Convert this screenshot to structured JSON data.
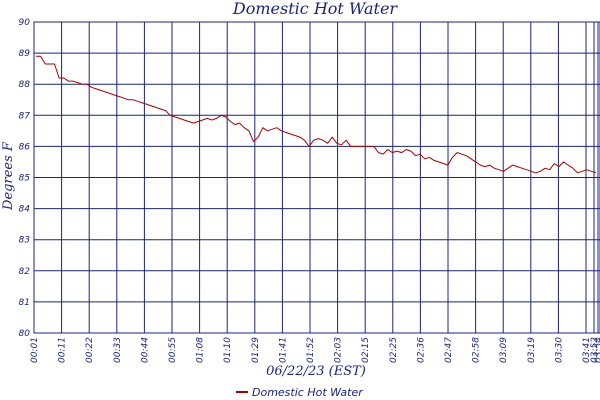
{
  "chart_data": {
    "type": "line",
    "title": "Domestic Hot Water",
    "xlabel": "06/22/23 (EST)",
    "ylabel": "Degrees F",
    "ylim": [
      80,
      90
    ],
    "y_ticks": [
      "80",
      "81",
      "82",
      "83",
      "84",
      "85",
      "86",
      "87",
      "88",
      "89",
      "90"
    ],
    "x_ticks": [
      "00:01",
      "00:11",
      "00:22",
      "00:33",
      "00:44",
      "00:55",
      "01:08",
      "01:10",
      "01:29",
      "01:41",
      "01:52",
      "02:03",
      "02:15",
      "02:25",
      "02:36",
      "02:47",
      "02:58",
      "03:09",
      "03:19",
      "03:30",
      "03:41",
      "03:52",
      "03:54"
    ],
    "grid": true,
    "legend_position": "bottom-center",
    "colors": {
      "series": "#aa0000",
      "grid": "#1a237e",
      "text": "#1a237e"
    },
    "series": [
      {
        "name": "Domestic Hot Water",
        "values": [
          88.9,
          88.9,
          88.65,
          88.65,
          88.65,
          88.2,
          88.2,
          88.1,
          88.1,
          88.05,
          88.0,
          88.0,
          87.9,
          87.85,
          87.8,
          87.75,
          87.7,
          87.65,
          87.6,
          87.55,
          87.5,
          87.5,
          87.45,
          87.4,
          87.35,
          87.3,
          87.25,
          87.2,
          87.15,
          87.0,
          86.95,
          86.9,
          86.85,
          86.8,
          86.75,
          86.8,
          86.85,
          86.9,
          86.85,
          86.9,
          87.0,
          86.95,
          86.8,
          86.7,
          86.75,
          86.6,
          86.5,
          86.15,
          86.3,
          86.6,
          86.5,
          86.55,
          86.6,
          86.5,
          86.45,
          86.4,
          86.35,
          86.3,
          86.2,
          86.0,
          86.2,
          86.25,
          86.2,
          86.1,
          86.3,
          86.1,
          86.05,
          86.2,
          86.0,
          86.0,
          86.0,
          86.0,
          86.0,
          86.0,
          85.8,
          85.75,
          85.9,
          85.8,
          85.85,
          85.8,
          85.9,
          85.85,
          85.7,
          85.75,
          85.6,
          85.65,
          85.55,
          85.5,
          85.45,
          85.4,
          85.65,
          85.8,
          85.75,
          85.7,
          85.6,
          85.5,
          85.4,
          85.35,
          85.4,
          85.3,
          85.25,
          85.2,
          85.3,
          85.4,
          85.35,
          85.3,
          85.25,
          85.2,
          85.15,
          85.2,
          85.3,
          85.25,
          85.45,
          85.35,
          85.5,
          85.4,
          85.3,
          85.15,
          85.2,
          85.25,
          85.2,
          85.15
        ]
      }
    ]
  }
}
